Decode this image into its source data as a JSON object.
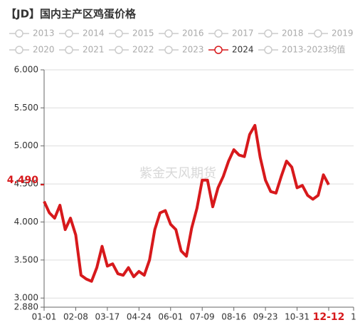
{
  "chart_data": {
    "type": "line",
    "title": "【JD】国内主产区鸡蛋价格",
    "watermark": "紫金天风期货",
    "inactive_series": [
      "2013",
      "2014",
      "2015",
      "2016",
      "2017",
      "2018",
      "2019",
      "2020",
      "2021",
      "2022",
      "2023",
      "2013-2023均值"
    ],
    "x": [
      "01-01",
      "01-07",
      "01-14",
      "01-20",
      "01-26",
      "02-02",
      "02-08",
      "02-14",
      "02-21",
      "02-27",
      "03-04",
      "03-11",
      "03-17",
      "03-23",
      "03-30",
      "04-05",
      "04-11",
      "04-18",
      "04-24",
      "04-30",
      "05-07",
      "05-13",
      "05-19",
      "05-26",
      "06-01",
      "06-07",
      "06-14",
      "06-20",
      "06-26",
      "07-03",
      "07-09",
      "07-15",
      "07-22",
      "07-28",
      "08-03",
      "08-10",
      "08-16",
      "08-22",
      "08-29",
      "09-04",
      "09-10",
      "09-17",
      "09-23",
      "09-29",
      "10-06",
      "10-12",
      "10-18",
      "10-25",
      "10-31",
      "11-06",
      "11-13",
      "11-20",
      "11-27",
      "12-04",
      "12-12"
    ],
    "series": [
      {
        "name": "2024",
        "color": "#d7191c",
        "values": [
          4.27,
          4.12,
          4.05,
          4.22,
          3.9,
          4.05,
          3.83,
          3.3,
          3.25,
          3.22,
          3.4,
          3.68,
          3.42,
          3.45,
          3.32,
          3.3,
          3.4,
          3.28,
          3.35,
          3.3,
          3.5,
          3.9,
          4.12,
          4.15,
          3.97,
          3.9,
          3.62,
          3.55,
          3.92,
          4.18,
          4.55,
          4.55,
          4.2,
          4.45,
          4.6,
          4.8,
          4.95,
          4.88,
          4.86,
          5.15,
          5.27,
          4.85,
          4.55,
          4.4,
          4.38,
          4.6,
          4.8,
          4.72,
          4.45,
          4.48,
          4.35,
          4.3,
          4.35,
          4.62,
          4.49
        ]
      }
    ],
    "last_value_label": "4.490",
    "xticks": [
      "01-01",
      "02-08",
      "03-17",
      "04-24",
      "06-01",
      "07-09",
      "08-16",
      "09-23",
      "10-31",
      "12-12",
      "1"
    ],
    "ylim": [
      2.88,
      6.0
    ],
    "yticks": [
      {
        "value": 2.88,
        "label": "2.880"
      },
      {
        "value": 3,
        "label": "3.000"
      },
      {
        "value": 3.5,
        "label": "3.500"
      },
      {
        "value": 4,
        "label": "4.000"
      },
      {
        "value": 4.5,
        "label": "4.500"
      },
      {
        "value": 5,
        "label": "5.000"
      },
      {
        "value": 5.5,
        "label": "5.500"
      },
      {
        "value": 6,
        "label": "6.000"
      }
    ],
    "grid": true
  }
}
